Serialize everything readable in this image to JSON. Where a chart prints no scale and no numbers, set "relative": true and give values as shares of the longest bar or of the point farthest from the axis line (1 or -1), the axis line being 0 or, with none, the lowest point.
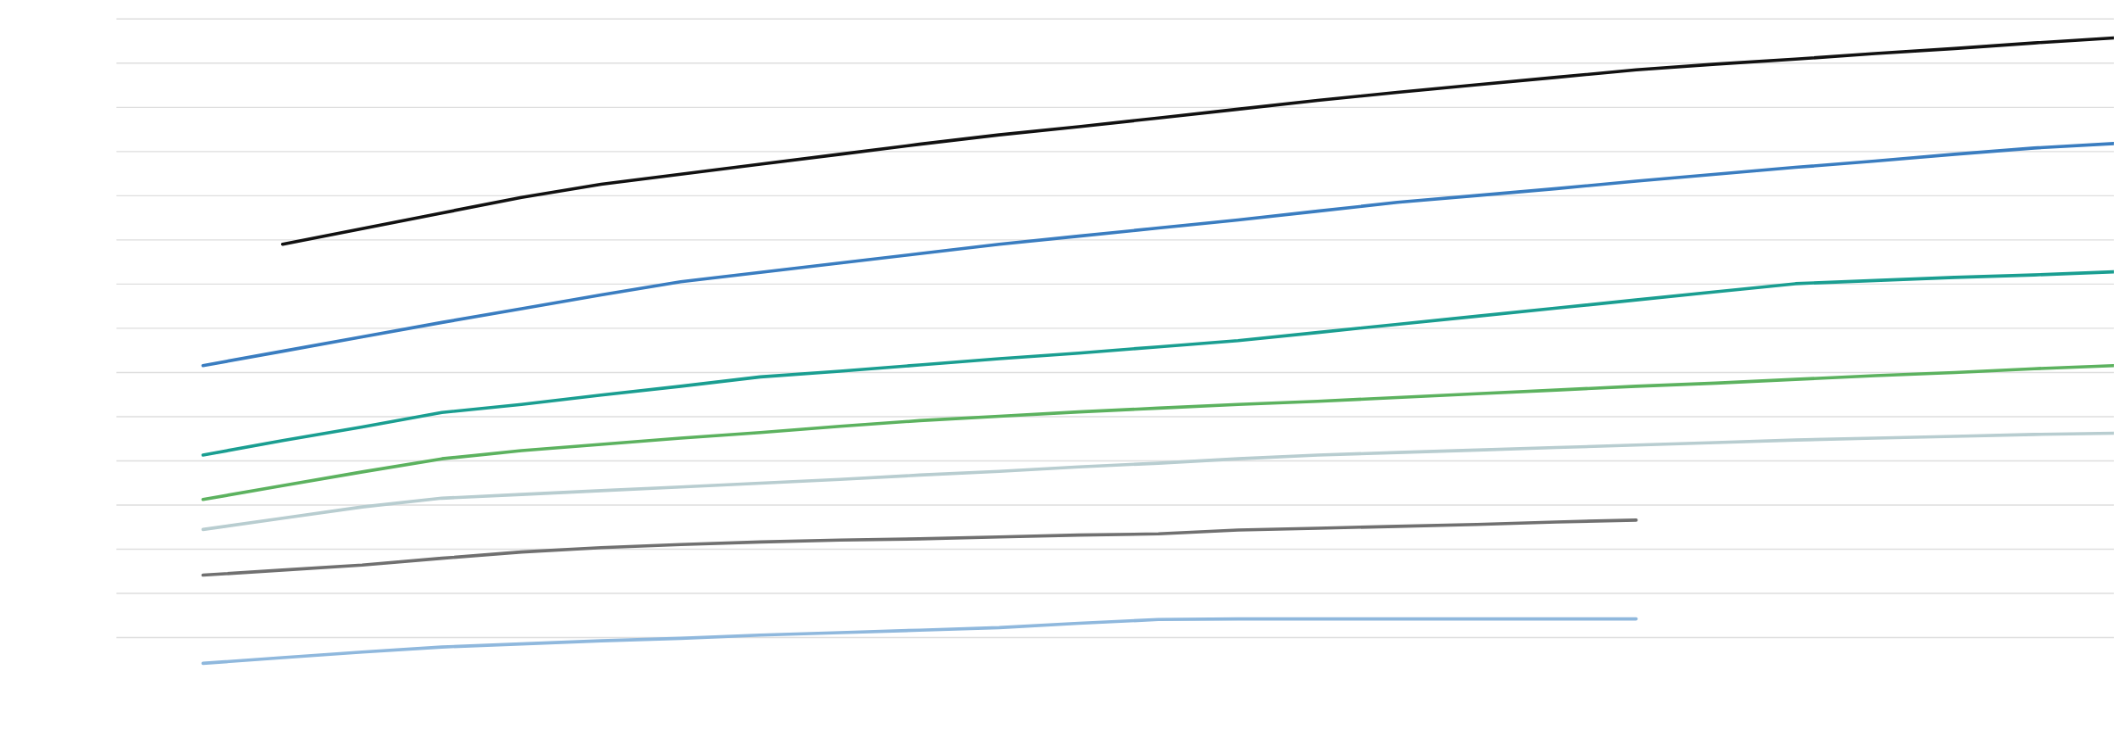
{
  "chart_data": {
    "type": "line",
    "relative": true,
    "grid": "y",
    "tick_labels": false,
    "categories": [
      null,
      null,
      null,
      null,
      null,
      null,
      null,
      null,
      null,
      null,
      null,
      null,
      null,
      null,
      null,
      null,
      null,
      null,
      null,
      null,
      null,
      null,
      null,
      null,
      null
    ],
    "series": [
      {
        "color": "#111111",
        "values": [
          null,
          0.67,
          0.695,
          0.72,
          0.745,
          0.766,
          0.782,
          0.798,
          0.814,
          0.83,
          0.845,
          0.858,
          0.872,
          0.886,
          0.9,
          0.913,
          0.925,
          0.937,
          0.949,
          0.958,
          0.966,
          0.975,
          0.983,
          0.992,
          1.0
        ]
      },
      {
        "color": "#3a7dc0",
        "values": [
          0.476,
          0.499,
          0.522,
          0.545,
          0.567,
          0.589,
          0.61,
          0.625,
          0.64,
          0.655,
          0.67,
          0.683,
          0.696,
          0.709,
          0.723,
          0.737,
          0.748,
          0.759,
          0.771,
          0.782,
          0.793,
          0.803,
          0.814,
          0.824,
          0.831
        ]
      },
      {
        "color": "#1a9e91",
        "values": [
          0.333,
          0.356,
          0.378,
          0.401,
          0.414,
          0.429,
          0.443,
          0.458,
          0.467,
          0.477,
          0.487,
          0.496,
          0.506,
          0.516,
          0.529,
          0.542,
          0.555,
          0.568,
          0.581,
          0.594,
          0.607,
          0.612,
          0.617,
          0.621,
          0.626
        ]
      },
      {
        "color": "#5cb25f",
        "values": [
          0.262,
          0.284,
          0.306,
          0.327,
          0.34,
          0.35,
          0.36,
          0.369,
          0.379,
          0.388,
          0.395,
          0.402,
          0.408,
          0.414,
          0.419,
          0.425,
          0.431,
          0.437,
          0.443,
          0.448,
          0.454,
          0.46,
          0.465,
          0.471,
          0.476
        ]
      },
      {
        "color": "#b8cdd0",
        "values": [
          0.214,
          0.232,
          0.25,
          0.264,
          0.27,
          0.276,
          0.282,
          0.288,
          0.294,
          0.301,
          0.307,
          0.314,
          0.32,
          0.327,
          0.333,
          0.337,
          0.341,
          0.345,
          0.349,
          0.353,
          0.357,
          0.36,
          0.363,
          0.366,
          0.368
        ]
      },
      {
        "color": "#707070",
        "values": [
          0.141,
          0.149,
          0.157,
          0.168,
          0.178,
          0.185,
          0.19,
          0.194,
          0.197,
          0.199,
          0.202,
          0.205,
          0.207,
          0.213,
          0.216,
          0.219,
          0.222,
          0.226,
          0.229,
          null,
          null,
          null,
          null,
          null,
          null
        ]
      },
      {
        "color": "#8fb8dd",
        "values": [
          0.0,
          0.009,
          0.018,
          0.026,
          0.031,
          0.036,
          0.04,
          0.045,
          0.049,
          0.053,
          0.057,
          0.064,
          0.07,
          0.071,
          0.071,
          0.071,
          0.071,
          0.071,
          0.071,
          null,
          null,
          null,
          null,
          null,
          null
        ]
      }
    ]
  }
}
